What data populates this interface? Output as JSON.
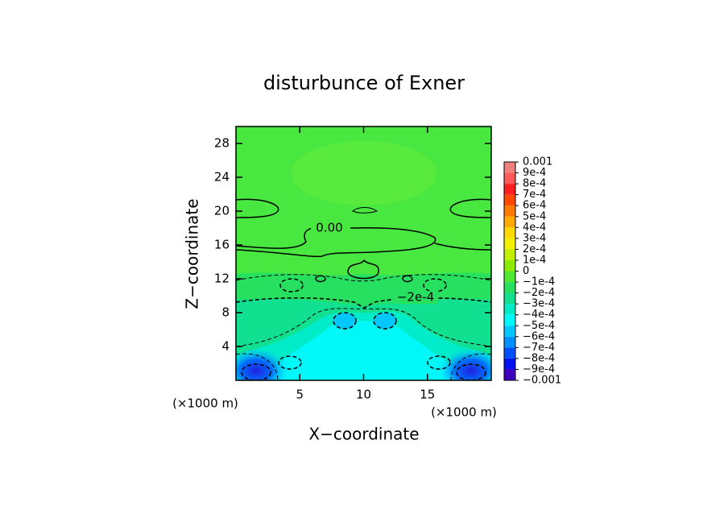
{
  "chart_data": {
    "type": "contour",
    "title": "disturbunce of Exner",
    "x_label": "X−coordinate",
    "y_label": "Z−coordinate",
    "x_unit_label": "(×1000 m)",
    "y_unit_label": "(×1000 m)",
    "xlim": [
      0,
      20
    ],
    "ylim": [
      0,
      30
    ],
    "xticks": [
      5,
      10,
      15
    ],
    "yticks": [
      4,
      8,
      12,
      16,
      20,
      24,
      28
    ],
    "contour_labels": [
      "0.00",
      "−2e-4"
    ],
    "colorbar": {
      "levels": [
        {
          "value": 0.001,
          "label": "0.001"
        },
        {
          "value": 0.0009,
          "label": "9e-4"
        },
        {
          "value": 0.0008,
          "label": "8e-4"
        },
        {
          "value": 0.0007,
          "label": "7e-4"
        },
        {
          "value": 0.0006,
          "label": "6e-4"
        },
        {
          "value": 0.0005,
          "label": "5e-4"
        },
        {
          "value": 0.0004,
          "label": "4e-4"
        },
        {
          "value": 0.0003,
          "label": "3e-4"
        },
        {
          "value": 0.0002,
          "label": "2e-4"
        },
        {
          "value": 0.0001,
          "label": "1e-4"
        },
        0,
        {
          "value": -0.0001,
          "label": "−1e-4"
        },
        {
          "value": -0.0002,
          "label": "−2e-4"
        },
        {
          "value": -0.0003,
          "label": "−3e-4"
        },
        {
          "value": -0.0004,
          "label": "−4e-4"
        },
        {
          "value": -0.0005,
          "label": "−5e-4"
        },
        {
          "value": -0.0006,
          "label": "−6e-4"
        },
        {
          "value": -0.0007,
          "label": "−7e-4"
        },
        {
          "value": -0.0008,
          "label": "−8e-4"
        },
        {
          "value": -0.0009,
          "label": "−9e-4"
        },
        {
          "value": -0.001,
          "label": "−0.001"
        }
      ],
      "colors": [
        "#f08080",
        "#ff5a5a",
        "#ff1e1e",
        "#ff4800",
        "#ff7a00",
        "#ffaa00",
        "#ffd800",
        "#f0f000",
        "#c0f000",
        "#8cec00",
        "#50e830",
        "#28e060",
        "#10e090",
        "#00ecc8",
        "#00f8f8",
        "#00c8ff",
        "#0090ff",
        "#0050ff",
        "#0010f0",
        "#4000c0"
      ]
    }
  }
}
